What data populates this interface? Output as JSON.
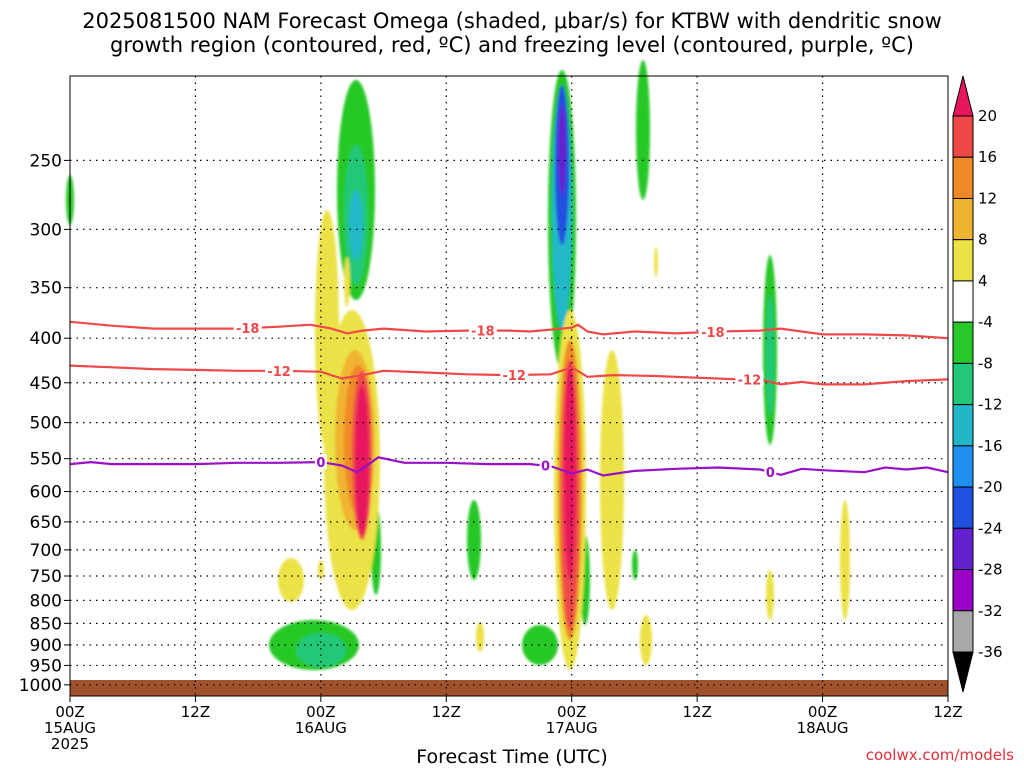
{
  "title_line1": "2025081500 NAM Forecast Omega (shaded, μbar/s) for KTBW with dendritic snow",
  "title_line2": "growth region (contoured, red, ºC) and freezing level (contoured, purple, ºC)",
  "xaxis_title": "Forecast Time (UTC)",
  "credit": "coolwx.com/models",
  "chart_data": {
    "type": "heatmap",
    "title": "2025081500 NAM Forecast Omega (shaded, μbar/s) for KTBW with dendritic snow growth region (contoured, red, ºC) and freezing level (contoured, purple, ºC)",
    "xlabel": "Forecast Time (UTC)",
    "ylabel": "",
    "x_hours_range": [
      0,
      84
    ],
    "y_pressure_range": [
      1030,
      200
    ],
    "y_ticks": [
      250,
      300,
      350,
      400,
      450,
      500,
      550,
      600,
      650,
      700,
      750,
      800,
      850,
      900,
      950,
      1000
    ],
    "x_ticks": [
      {
        "h": 0,
        "lines": [
          "00Z",
          "15AUG",
          "2025"
        ]
      },
      {
        "h": 12,
        "lines": [
          "12Z"
        ]
      },
      {
        "h": 24,
        "lines": [
          "00Z",
          "16AUG"
        ]
      },
      {
        "h": 36,
        "lines": [
          "12Z"
        ]
      },
      {
        "h": 48,
        "lines": [
          "00Z",
          "17AUG"
        ]
      },
      {
        "h": 60,
        "lines": [
          "12Z"
        ]
      },
      {
        "h": 72,
        "lines": [
          "00Z",
          "18AUG"
        ]
      },
      {
        "h": 84,
        "lines": [
          "12Z"
        ]
      }
    ],
    "grid": true,
    "colorbar": {
      "labels": [
        "20",
        "16",
        "12",
        "8",
        "4",
        "-4",
        "-8",
        "-12",
        "-16",
        "-20",
        "-24",
        "-28",
        "-32",
        "-36"
      ],
      "colors": [
        "#e8175d",
        "#f04848",
        "#f08a28",
        "#f0b430",
        "#ebe246",
        "#ffffff",
        "#28c828",
        "#20c878",
        "#20b8c8",
        "#2090f0",
        "#2050e0",
        "#6420d0",
        "#9a00c8",
        "#a8a8a8",
        "#000000"
      ]
    },
    "contours": [
      {
        "name": "-18",
        "color": "#f04848",
        "labels": [
          {
            "h": 17.0,
            "text": "-18"
          },
          {
            "h": 39.5,
            "text": "-18"
          },
          {
            "h": 61.5,
            "text": "-18"
          }
        ],
        "points": [
          [
            0,
            383
          ],
          [
            4,
            387
          ],
          [
            8,
            390
          ],
          [
            12,
            390
          ],
          [
            16,
            390
          ],
          [
            20,
            388
          ],
          [
            23,
            386
          ],
          [
            25,
            390
          ],
          [
            26.5,
            395
          ],
          [
            28,
            392
          ],
          [
            30,
            390
          ],
          [
            34,
            393
          ],
          [
            38,
            392
          ],
          [
            42,
            392
          ],
          [
            44,
            393
          ],
          [
            46,
            391
          ],
          [
            48,
            389
          ],
          [
            48.6,
            386
          ],
          [
            49.5,
            393
          ],
          [
            51,
            396
          ],
          [
            54,
            393
          ],
          [
            58,
            395
          ],
          [
            62,
            393
          ],
          [
            66,
            392
          ],
          [
            68,
            390
          ],
          [
            70,
            393
          ],
          [
            72,
            396
          ],
          [
            76,
            396
          ],
          [
            80,
            397
          ],
          [
            84,
            400
          ]
        ]
      },
      {
        "name": "-12",
        "color": "#f04848",
        "labels": [
          {
            "h": 20.0,
            "text": "-12"
          },
          {
            "h": 42.5,
            "text": "-12"
          },
          {
            "h": 65.0,
            "text": "-12"
          }
        ],
        "points": [
          [
            0,
            430
          ],
          [
            4,
            432
          ],
          [
            8,
            434
          ],
          [
            12,
            435
          ],
          [
            16,
            436
          ],
          [
            20,
            436
          ],
          [
            24,
            437
          ],
          [
            26,
            445
          ],
          [
            28,
            441
          ],
          [
            30,
            436
          ],
          [
            34,
            438
          ],
          [
            38,
            440
          ],
          [
            42,
            441
          ],
          [
            46,
            440
          ],
          [
            48,
            432
          ],
          [
            49.5,
            443
          ],
          [
            52,
            441
          ],
          [
            56,
            442
          ],
          [
            60,
            444
          ],
          [
            64,
            446
          ],
          [
            66,
            446
          ],
          [
            68,
            452
          ],
          [
            70,
            449
          ],
          [
            72,
            452
          ],
          [
            76,
            452
          ],
          [
            80,
            448
          ],
          [
            84,
            446
          ]
        ]
      },
      {
        "name": "0",
        "color": "#9a10c8",
        "labels": [
          {
            "h": 24.0,
            "text": "0"
          },
          {
            "h": 45.5,
            "text": "0"
          },
          {
            "h": 67.0,
            "text": "0"
          }
        ],
        "points": [
          [
            0,
            558
          ],
          [
            2,
            555
          ],
          [
            4,
            558
          ],
          [
            8,
            558
          ],
          [
            12,
            558
          ],
          [
            16,
            556
          ],
          [
            20,
            556
          ],
          [
            24,
            555
          ],
          [
            26,
            560
          ],
          [
            27.5,
            570
          ],
          [
            29.5,
            548
          ],
          [
            32,
            556
          ],
          [
            36,
            556
          ],
          [
            40,
            558
          ],
          [
            44,
            558
          ],
          [
            46,
            561
          ],
          [
            48,
            572
          ],
          [
            49.5,
            566
          ],
          [
            51,
            575
          ],
          [
            54,
            568
          ],
          [
            58,
            565
          ],
          [
            62,
            563
          ],
          [
            66,
            566
          ],
          [
            68,
            574
          ],
          [
            70,
            565
          ],
          [
            72,
            567
          ],
          [
            76,
            570
          ],
          [
            78,
            563
          ],
          [
            80,
            566
          ],
          [
            82,
            563
          ],
          [
            84,
            570
          ]
        ]
      }
    ]
  }
}
